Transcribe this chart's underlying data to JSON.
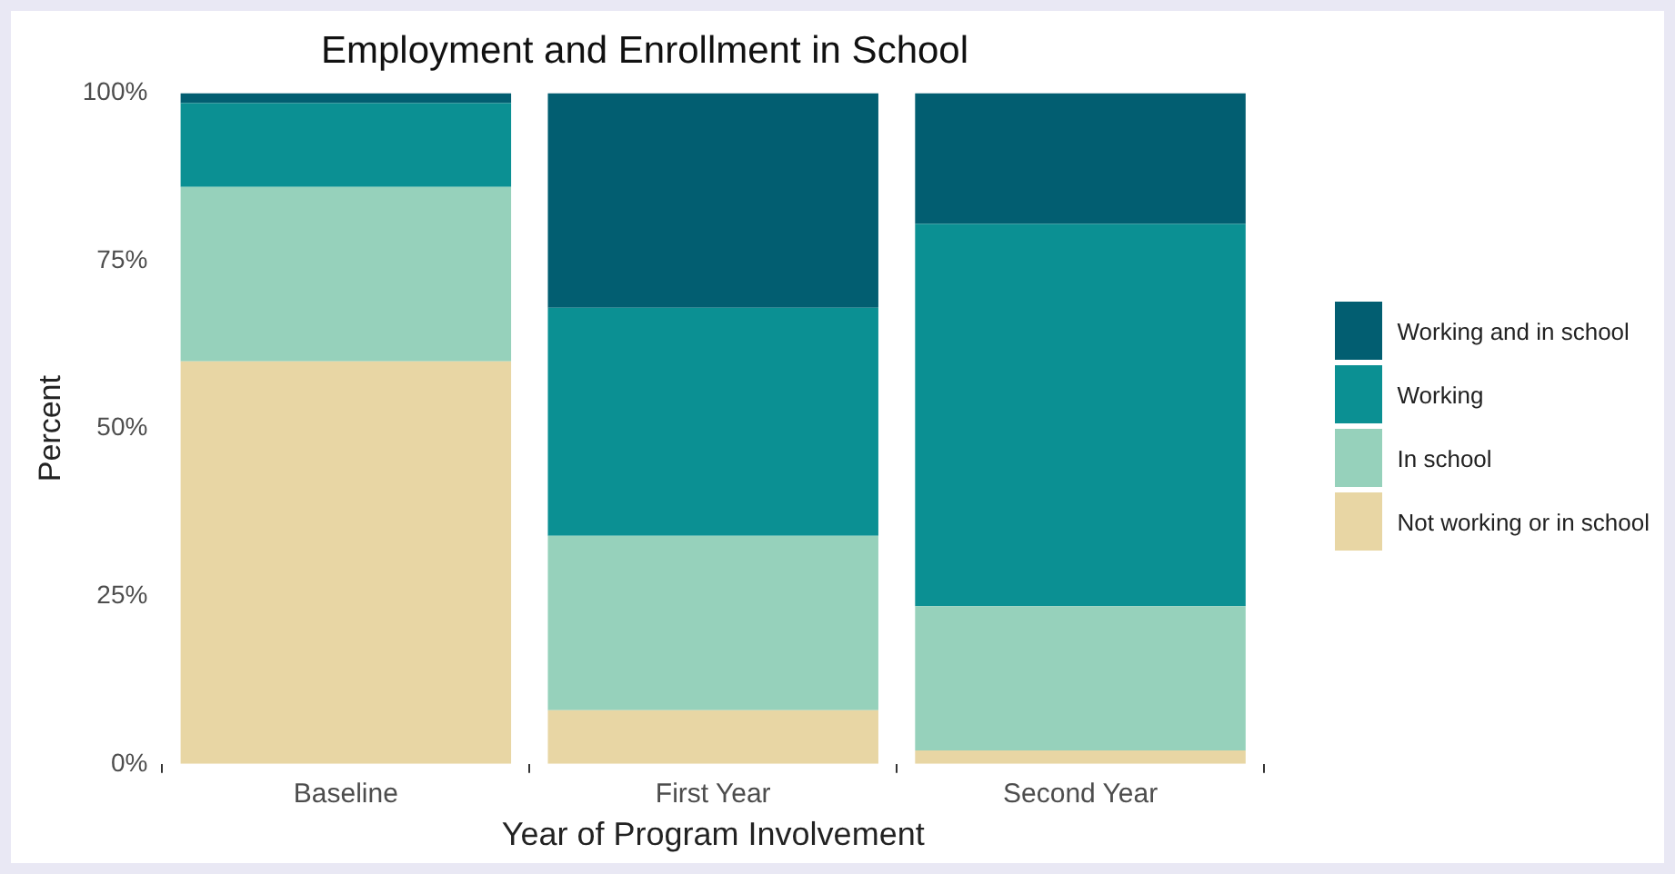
{
  "chart_data": {
    "type": "bar",
    "title": "Employment and Enrollment in School",
    "xlabel": "Year of Program Involvement",
    "ylabel": "Percent",
    "categories": [
      "Baseline",
      "First Year",
      "Second Year"
    ],
    "stacked": true,
    "legend": "right",
    "grid": false,
    "ylim": [
      0,
      100
    ],
    "yticks": [
      {
        "value": 0,
        "label": "0%"
      },
      {
        "value": 25,
        "label": "25%"
      },
      {
        "value": 50,
        "label": "50%"
      },
      {
        "value": 75,
        "label": "75%"
      },
      {
        "value": 100,
        "label": "100%"
      }
    ],
    "series": [
      {
        "name": "Not working or in school",
        "color": "#e8d6a4",
        "values": [
          60,
          8,
          2
        ]
      },
      {
        "name": "In school",
        "color": "#96d1bb",
        "values": [
          26,
          26,
          21.5
        ]
      },
      {
        "name": "Working",
        "color": "#0b9093",
        "values": [
          12.5,
          34,
          57
        ]
      },
      {
        "name": "Working and in school",
        "color": "#025e71",
        "values": [
          1.5,
          32,
          19.5
        ]
      }
    ]
  }
}
